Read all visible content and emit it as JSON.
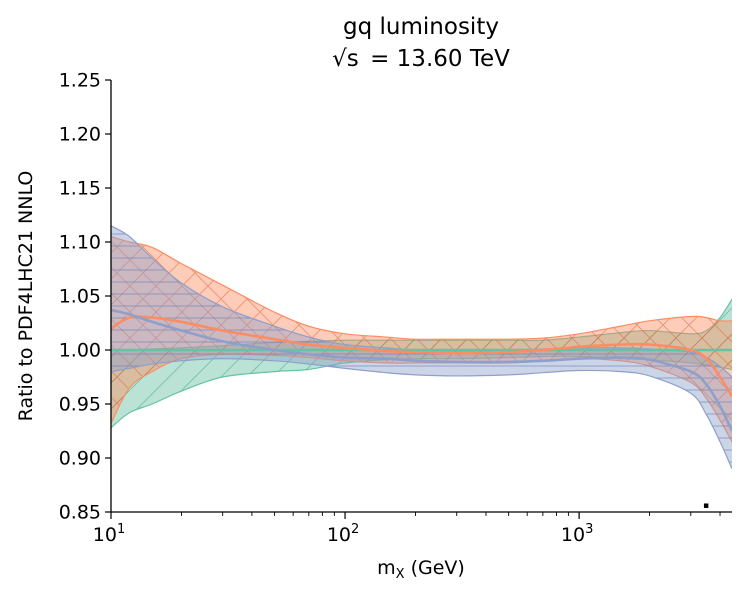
{
  "chart_data": {
    "type": "area",
    "title": "gq luminosity",
    "subtitle_prefix": "√s",
    "subtitle_value": "= 13.60 TeV",
    "xlabel_main": "m",
    "xlabel_sub": "X",
    "xlabel_unit": "(GeV)",
    "ylabel": "Ratio to PDF4LHC21 NNLO",
    "xscale": "log",
    "xlim": [
      10,
      4500
    ],
    "ylim": [
      0.85,
      1.25
    ],
    "yticks": [
      {
        "value": 0.85,
        "label": "0.85"
      },
      {
        "value": 0.9,
        "label": "0.90"
      },
      {
        "value": 0.95,
        "label": "0.95"
      },
      {
        "value": 1.0,
        "label": "1.00"
      },
      {
        "value": 1.05,
        "label": "1.05"
      },
      {
        "value": 1.1,
        "label": "1.10"
      },
      {
        "value": 1.15,
        "label": "1.15"
      },
      {
        "value": 1.2,
        "label": "1.20"
      },
      {
        "value": 1.25,
        "label": "1.25"
      }
    ],
    "xticks": [
      {
        "value": 10,
        "base": "10",
        "exp": "1"
      },
      {
        "value": 100,
        "base": "10",
        "exp": "2"
      },
      {
        "value": 1000,
        "base": "10",
        "exp": "3"
      }
    ],
    "grid": false,
    "legend": "none",
    "series": [
      {
        "name": "green",
        "color": "#66c2a5",
        "hatch": "diagonal-up",
        "x": [
          10,
          12,
          15,
          20,
          30,
          50,
          70,
          100,
          150,
          200,
          300,
          500,
          700,
          1000,
          1500,
          2000,
          3000,
          3500,
          4000,
          4500
        ],
        "upper": [
          1.0,
          1.0,
          1.001,
          1.002,
          1.004,
          1.007,
          1.008,
          1.009,
          1.009,
          1.009,
          1.009,
          1.009,
          1.009,
          1.012,
          1.016,
          1.018,
          1.015,
          1.018,
          1.03,
          1.047
        ],
        "center": [
          1.0,
          1.0,
          1.0,
          1.0,
          1.0,
          1.0,
          1.0,
          1.0,
          1.0,
          1.0,
          1.0,
          1.0,
          1.0,
          1.0,
          1.0,
          1.0,
          1.0,
          1.0,
          1.0,
          1.0
        ],
        "lower": [
          0.928,
          0.942,
          0.95,
          0.962,
          0.975,
          0.98,
          0.982,
          0.988,
          0.991,
          0.992,
          0.992,
          0.993,
          0.994,
          0.994,
          0.992,
          0.991,
          0.988,
          0.986,
          0.984,
          0.982
        ]
      },
      {
        "name": "orange",
        "color": "#fc8d62",
        "hatch": "cross",
        "x": [
          10,
          12,
          15,
          20,
          30,
          50,
          70,
          100,
          150,
          200,
          300,
          500,
          700,
          1000,
          1500,
          2000,
          3000,
          3500,
          4000,
          4500
        ],
        "upper": [
          1.105,
          1.1,
          1.095,
          1.08,
          1.06,
          1.035,
          1.022,
          1.015,
          1.012,
          1.01,
          1.01,
          1.01,
          1.011,
          1.015,
          1.022,
          1.027,
          1.031,
          1.03,
          1.027,
          1.027
        ],
        "center": [
          1.02,
          1.03,
          1.03,
          1.026,
          1.018,
          1.01,
          1.005,
          1.002,
          0.999,
          0.998,
          0.997,
          0.998,
          1.0,
          1.003,
          1.005,
          1.005,
          1.0,
          0.992,
          0.975,
          0.957
        ],
        "lower": [
          0.932,
          0.965,
          0.98,
          0.992,
          0.996,
          0.995,
          0.993,
          0.99,
          0.988,
          0.988,
          0.988,
          0.988,
          0.99,
          0.992,
          0.99,
          0.985,
          0.97,
          0.955,
          0.935,
          0.915
        ]
      },
      {
        "name": "blue",
        "color": "#8da0cb",
        "hatch": "horizontal",
        "x": [
          10,
          12,
          15,
          20,
          30,
          50,
          70,
          100,
          150,
          200,
          300,
          500,
          700,
          1000,
          1500,
          2000,
          3000,
          3500,
          4000,
          4500
        ],
        "upper": [
          1.115,
          1.105,
          1.085,
          1.062,
          1.04,
          1.022,
          1.012,
          1.005,
          1.002,
          1.0,
          0.999,
          1.0,
          1.001,
          1.002,
          1.002,
          1.001,
          0.998,
          0.993,
          0.985,
          0.975
        ],
        "center": [
          1.037,
          1.033,
          1.026,
          1.018,
          1.008,
          1.0,
          0.996,
          0.993,
          0.992,
          0.99,
          0.989,
          0.989,
          0.99,
          0.992,
          0.993,
          0.991,
          0.98,
          0.968,
          0.948,
          0.925
        ],
        "lower": [
          0.98,
          0.983,
          0.987,
          0.99,
          0.992,
          0.99,
          0.987,
          0.983,
          0.979,
          0.977,
          0.976,
          0.977,
          0.979,
          0.981,
          0.98,
          0.976,
          0.96,
          0.94,
          0.915,
          0.89
        ]
      }
    ],
    "corner_mark": "▪"
  }
}
